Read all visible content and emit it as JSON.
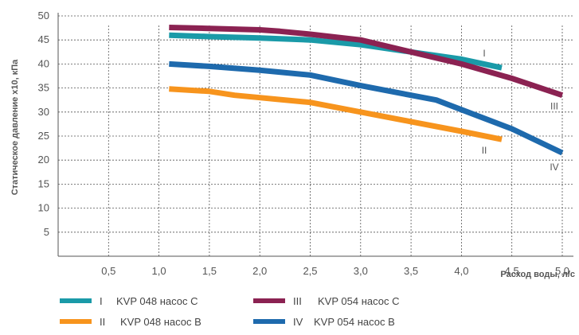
{
  "chart_data": {
    "type": "line",
    "xlabel": "Расход воды, л/с",
    "ylabel": "Статическое давление x10, кПа",
    "xlim": [
      0,
      5.0
    ],
    "ylim": [
      0,
      50
    ],
    "x_ticks": [
      "0,5",
      "1,0",
      "1,5",
      "2,0",
      "2,5",
      "3,0",
      "3,5",
      "4,0",
      "4,5",
      "5,0"
    ],
    "y_ticks": [
      "5",
      "10",
      "15",
      "20",
      "25",
      "30",
      "35",
      "40",
      "45",
      "50"
    ],
    "grid": true,
    "legend_position": "bottom",
    "series": [
      {
        "id": "I",
        "name": "KVP 048 насос C",
        "color": "#1a9aa8",
        "x": [
          1.1,
          1.5,
          2.0,
          2.5,
          3.0,
          3.5,
          4.0,
          4.4
        ],
        "y": [
          46.0,
          45.7,
          45.4,
          45.0,
          44.0,
          42.5,
          41.0,
          39.2
        ]
      },
      {
        "id": "II",
        "name": "KVP 048 насос B",
        "color": "#f7941d",
        "x": [
          1.1,
          1.5,
          1.75,
          2.0,
          2.5,
          3.0,
          3.5,
          4.0,
          4.4
        ],
        "y": [
          34.8,
          34.3,
          33.5,
          33.0,
          32.0,
          30.0,
          28.0,
          26.0,
          24.3
        ]
      },
      {
        "id": "III",
        "name": "KVP 054 насос C",
        "color": "#8b2252",
        "x": [
          1.1,
          1.5,
          2.0,
          2.2,
          2.5,
          3.0,
          3.5,
          4.0,
          4.5,
          5.0
        ],
        "y": [
          47.6,
          47.4,
          47.1,
          46.8,
          46.2,
          45.0,
          42.5,
          40.0,
          37.0,
          33.5
        ]
      },
      {
        "id": "IV",
        "name": "KVP 054 насос B",
        "color": "#1e6aad",
        "x": [
          1.1,
          1.5,
          2.0,
          2.5,
          3.0,
          3.5,
          3.75,
          4.0,
          4.5,
          5.0
        ],
        "y": [
          40.0,
          39.5,
          38.7,
          37.7,
          35.5,
          33.5,
          32.5,
          30.5,
          26.5,
          21.5
        ]
      }
    ]
  }
}
